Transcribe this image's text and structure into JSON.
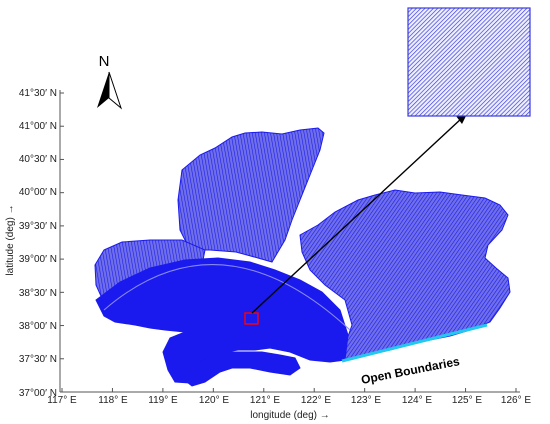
{
  "map": {
    "x_axis_label": "longitude (deg) →",
    "y_axis_label": "latitude (deg) →",
    "x_ticks": [
      "117° E",
      "118° E",
      "119° E",
      "120° E",
      "121° E",
      "122° E",
      "123° E",
      "124° E",
      "125° E",
      "126° E"
    ],
    "y_ticks": [
      "37°00′ N",
      "37°30′ N",
      "38°00′ N",
      "38°30′ N",
      "39°00′ N",
      "39°30′ N",
      "40°00′ N",
      "40°30′ N",
      "41°00′ N",
      "41°30′ N"
    ],
    "north_label": "N",
    "boundary_label": "Open Boundaries",
    "colors": {
      "mesh": "#1a1aee",
      "mesh_light": "#5a5ae8",
      "boundary": "#22c8ee",
      "highlight": "#ff0000",
      "axis": "#555555"
    }
  }
}
